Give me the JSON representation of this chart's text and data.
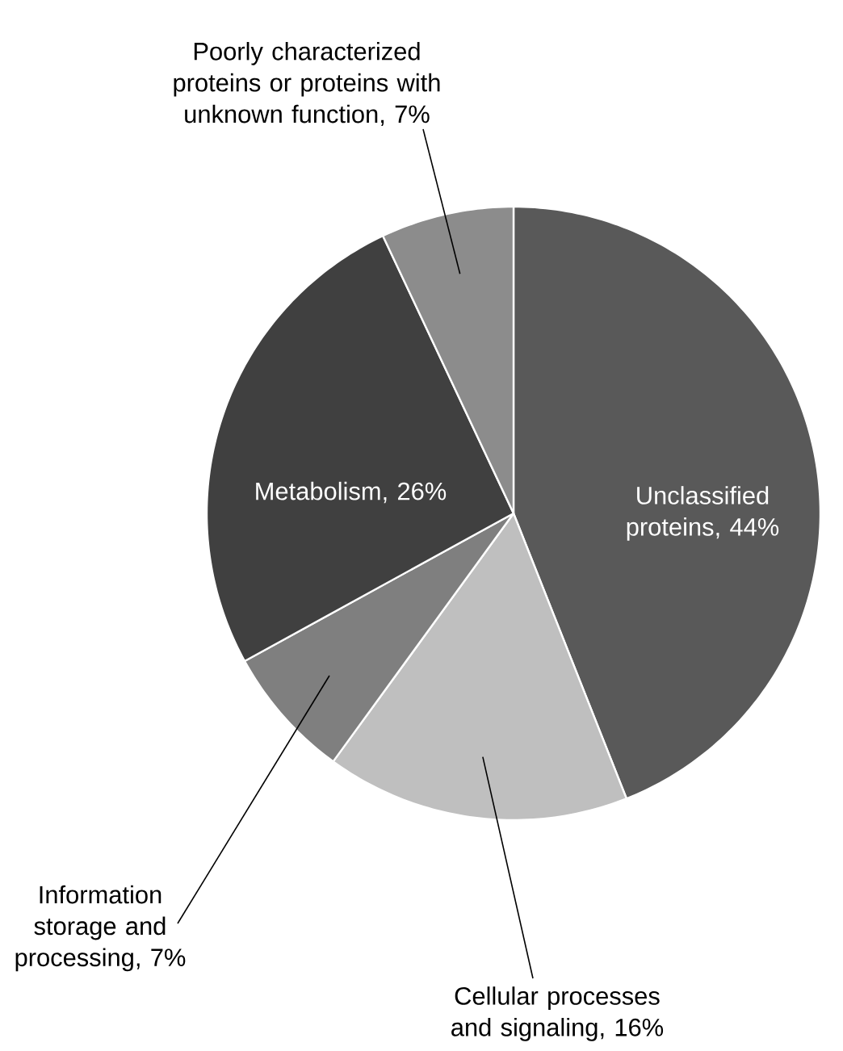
{
  "chart_data": {
    "type": "pie",
    "categories": [
      "Unclassified proteins",
      "Cellular processes and signaling",
      "Information storage and processing",
      "Metabolism",
      "Poorly characterized proteins or proteins with unknown function"
    ],
    "values": [
      44,
      16,
      7,
      26,
      7
    ],
    "value_labels": [
      ", 44%",
      ", 16%",
      ", 7%",
      ", 26%",
      ", 7%"
    ],
    "colors": [
      "#595959",
      "#bfbfbf",
      "#7f7f7f",
      "#404040",
      "#8c8c8c"
    ]
  }
}
